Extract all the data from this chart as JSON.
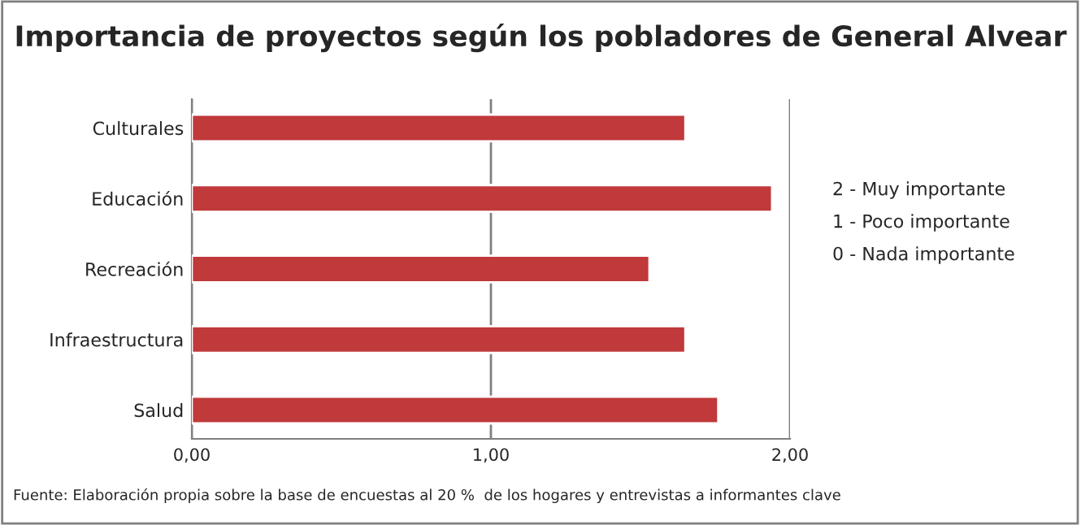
{
  "chart_data": {
    "type": "bar",
    "orientation": "horizontal",
    "title": "Importancia de proyectos según los pobladores de General Alvear",
    "categories": [
      "Culturales",
      "Educación",
      "Recreación",
      "Infraestructura",
      "Salud"
    ],
    "values": [
      1.65,
      1.94,
      1.53,
      1.65,
      1.76
    ],
    "color": "#c0393b",
    "xlim": [
      0,
      2
    ],
    "xticks": [
      {
        "value": 0,
        "label": "0,00"
      },
      {
        "value": 1,
        "label": "1,00"
      },
      {
        "value": 2,
        "label": "2,00"
      }
    ],
    "grid": "x",
    "annotations": [
      "2 - Muy importante",
      "1 - Poco importante",
      "0 - Nada importante",
      "Fuente: Elaboración propia sobre la base de encuestas al 20 %  de los hogares y entrevistas a informantes clave"
    ]
  }
}
